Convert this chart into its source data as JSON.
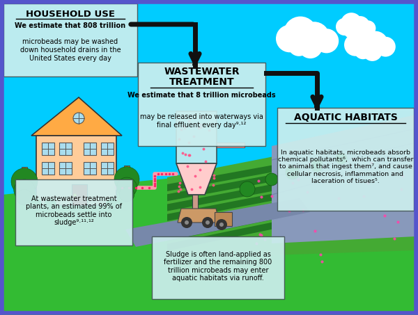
{
  "bg_color": "#00CCFF",
  "border_color": "#5555CC",
  "sky_color": "#00CCFF",
  "ground_color_left": "#33BB33",
  "ground_color_farm": "#44AA33",
  "farm_stripe_color": "#227722",
  "water_color": "#8899BB",
  "river_color": "#7788AA",
  "text_box_color": "#CCEEEE",
  "title1": "HOUSEHOLD USE",
  "title2_line1": "WASTEWATER",
  "title2_line2": "TREATMENT",
  "title3": "AQUATIC HABITATS",
  "box1_bold": "We estimate that 808 trillion",
  "box1_rest": "microbeads may be washed\ndown household drains in the\nUnited States every day",
  "box2_bold": "We estimate that 8 trillion",
  "box2_rest": "microbeads\nmay be released into waterways via\nfinal effluent every day⁹·¹²",
  "box3_text": "In aquatic habitats, microbeads absorb\nchemical pollutants⁶,  which can transfer\nto animals that ingest them⁷, and cause\ncellular necrosis, inflammation and\nlaceration of tisues⁵.",
  "box4_text": "At wastewater treatment\nplants, an estimated 99% of\nmicrobeads settle into\nsludge⁹·¹¹·¹²",
  "box5_text": "Sludge is often land-applied as\nfertilizer and the remaining 800\ntrillion microbeads may enter\naquatic habitats via runoff.",
  "house_wall": "#FFCC99",
  "house_roof": "#FFAA44",
  "house_door": "#CC0000",
  "house_window": "#AADDEE",
  "tree_trunk": "#AA7733",
  "tree_leaves": "#228822",
  "pipe_color": "#FF99AA",
  "bead_color": "#FF5588",
  "arrow_color": "#111111",
  "truck_body": "#CC9966",
  "funnel_top": "#CCEEEE",
  "funnel_bottom": "#FFCCCC",
  "stem_color": "#CC9988"
}
